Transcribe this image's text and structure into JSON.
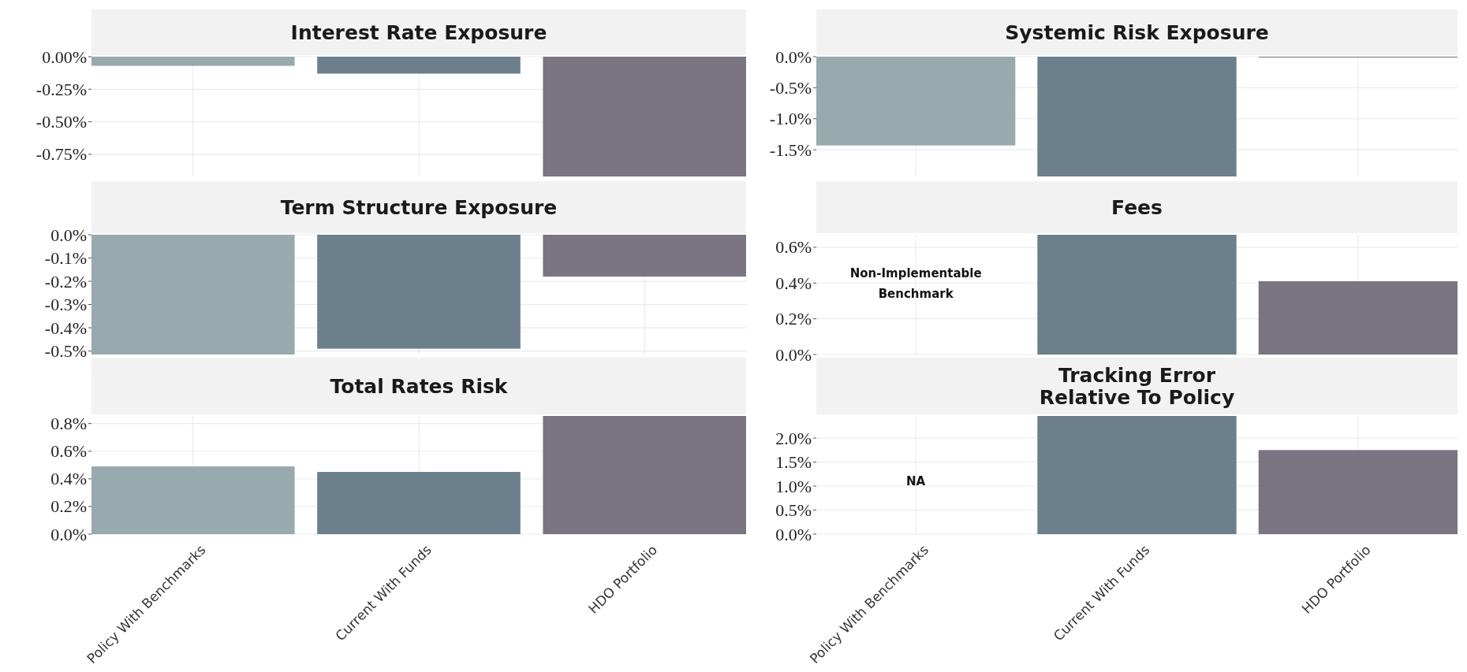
{
  "chart_data": [
    {
      "type": "bar",
      "title": "Interest Rate Exposure",
      "values": [
        -0.07,
        -0.13,
        -0.92
      ],
      "colors": [
        "#97aaae",
        "#6b7f8c",
        "#7b7482"
      ],
      "ylim": [
        -0.92,
        0
      ],
      "yticks": [
        {
          "value": 0,
          "label": "0.00%"
        },
        {
          "value": -0.25,
          "label": "-0.25%"
        },
        {
          "value": -0.5,
          "label": "-0.50%"
        },
        {
          "value": -0.75,
          "label": "-0.75%"
        }
      ],
      "grid": true,
      "tick_labels": "y"
    },
    {
      "type": "bar",
      "title": "Systemic Risk Exposure",
      "values": [
        -1.43,
        -1.93,
        -0.01
      ],
      "colors": [
        "#97aaae",
        "#6b7f8c",
        "#7b7482"
      ],
      "ylim": [
        -1.93,
        0
      ],
      "yticks": [
        {
          "value": 0,
          "label": "0.0%"
        },
        {
          "value": -0.5,
          "label": "-0.5%"
        },
        {
          "value": -1,
          "label": "-1.0%"
        },
        {
          "value": -1.5,
          "label": "-1.5%"
        }
      ],
      "grid": true,
      "tick_labels": "y"
    },
    {
      "type": "bar",
      "title": "Term Structure Exposure",
      "values": [
        -0.515,
        -0.49,
        -0.18
      ],
      "colors": [
        "#97aaae",
        "#6b7f8c",
        "#7b7482"
      ],
      "ylim": [
        -0.515,
        0
      ],
      "yticks": [
        {
          "value": 0,
          "label": "0.0%"
        },
        {
          "value": -0.1,
          "label": "-0.1%"
        },
        {
          "value": -0.2,
          "label": "-0.2%"
        },
        {
          "value": -0.3,
          "label": "-0.3%"
        },
        {
          "value": -0.4,
          "label": "-0.4%"
        },
        {
          "value": -0.5,
          "label": "-0.5%"
        }
      ],
      "grid": true,
      "tick_labels": "y"
    },
    {
      "type": "bar",
      "title": "Fees",
      "values": [
        null,
        0.67,
        0.41
      ],
      "colors": [
        null,
        "#6b7f8c",
        "#7b7482"
      ],
      "ylim": [
        0,
        0.67
      ],
      "yticks": [
        {
          "value": 0,
          "label": "0.0%"
        },
        {
          "value": 0.2,
          "label": "0.2%"
        },
        {
          "value": 0.4,
          "label": "0.4%"
        },
        {
          "value": 0.6,
          "label": "0.6%"
        }
      ],
      "grid": true,
      "tick_labels": "y",
      "annotations": [
        "Non-Implementable\nBenchmark"
      ]
    },
    {
      "type": "bar",
      "title": "Total Rates Risk",
      "categories": [
        "Policy With Benchmarks",
        "Current With Funds",
        "HDO Portfolio"
      ],
      "values": [
        0.49,
        0.45,
        0.855
      ],
      "colors": [
        "#97aaae",
        "#6b7f8c",
        "#7b7482"
      ],
      "ylim": [
        0,
        0.855
      ],
      "yticks": [
        {
          "value": 0,
          "label": "0.0%"
        },
        {
          "value": 0.2,
          "label": "0.2%"
        },
        {
          "value": 0.4,
          "label": "0.4%"
        },
        {
          "value": 0.6,
          "label": "0.6%"
        },
        {
          "value": 0.8,
          "label": "0.8%"
        }
      ],
      "grid": true
    },
    {
      "type": "bar",
      "title": "Tracking Error\nRelative To Policy",
      "categories": [
        "Policy With Benchmarks",
        "Current With Funds",
        "HDO Portfolio"
      ],
      "values": [
        null,
        2.46,
        1.75
      ],
      "colors": [
        null,
        "#6b7f8c",
        "#7b7482"
      ],
      "ylim": [
        0,
        2.46
      ],
      "yticks": [
        {
          "value": 0,
          "label": "0.0%"
        },
        {
          "value": 0.5,
          "label": "0.5%"
        },
        {
          "value": 1,
          "label": "1.0%"
        },
        {
          "value": 1.5,
          "label": "1.5%"
        },
        {
          "value": 2,
          "label": "2.0%"
        }
      ],
      "grid": true,
      "annotations": [
        "NA"
      ]
    }
  ]
}
